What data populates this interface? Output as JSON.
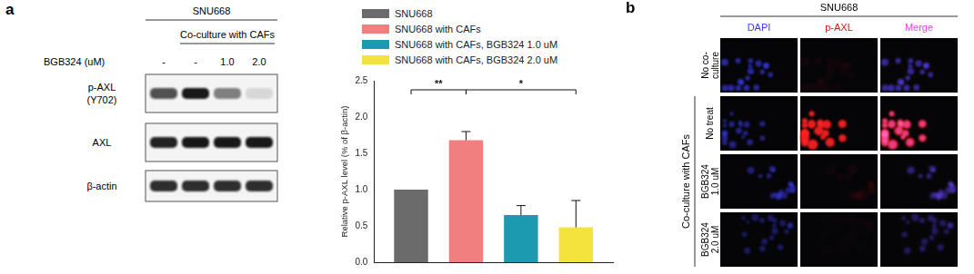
{
  "chart_data": {
    "type": "bar",
    "categories": [
      null
    ],
    "ylabel": "Relative p-AXL level (% of β-actin)",
    "ylim": [
      0,
      2.5
    ],
    "yticks": [
      {
        "value": 0,
        "label": "0.0"
      },
      0.5,
      {
        "value": 1,
        "label": "1.0"
      },
      1.5,
      {
        "value": 2,
        "label": "2.0"
      },
      2.5
    ],
    "grid": false,
    "legend": "top",
    "tick_labels": "y",
    "series": [
      {
        "name": "SNU668",
        "color": "#6b6b6b",
        "values": [
          1.0
        ],
        "errors": [
          null
        ]
      },
      {
        "name": "SNU668 with CAFs",
        "color": "#f27f7f",
        "values": [
          1.68
        ],
        "errors": [
          0.12
        ]
      },
      {
        "name": "SNU668 with CAFs, BGB324 1.0 uM",
        "color": "#1c9bb0",
        "values": [
          0.65
        ],
        "errors": [
          0.13
        ]
      },
      {
        "name": "SNU668 with CAFs, BGB324 2.0 uM",
        "color": "#f3e33c",
        "values": [
          0.48
        ],
        "errors": [
          0.37
        ]
      }
    ],
    "annotations": [
      {
        "text": "**",
        "from": 0,
        "to": 1
      },
      {
        "text": "*",
        "from": 1,
        "to": 3
      }
    ]
  },
  "blot": {
    "panel_label": "a",
    "title": "SNU668",
    "subtitle": "Co-culture with CAFs",
    "treatment_label": "BGB324 (uM)",
    "lanes": [
      "-",
      "-",
      "1.0",
      "2.0"
    ],
    "coculture": [
      false,
      true,
      true,
      true
    ],
    "rows": [
      {
        "label": [
          "p-AXL",
          "(Y702)"
        ],
        "intensity": [
          0.7,
          0.95,
          0.5,
          0.12
        ]
      },
      {
        "label": [
          "AXL"
        ],
        "intensity": [
          0.9,
          0.95,
          0.95,
          0.95
        ]
      },
      {
        "label": [
          "β-actin"
        ],
        "intensity": [
          0.85,
          0.85,
          0.85,
          0.85
        ]
      }
    ]
  },
  "images": {
    "panel_label": "b",
    "title": "SNU668",
    "columns": [
      {
        "text": "DAPI",
        "color": "#3a3aff"
      },
      {
        "text": "p-AXL",
        "color": "#e01010"
      },
      {
        "text": "Merge",
        "color": "#e040e0"
      }
    ],
    "group_label": "Co-culture with CAFs",
    "rows": [
      {
        "label": [
          "No co-",
          "culture"
        ],
        "in_group": false,
        "dapi": 0.6,
        "p_axl": 0.04
      },
      {
        "label": [
          "No treat"
        ],
        "in_group": true,
        "dapi": 0.5,
        "p_axl": 0.9
      },
      {
        "label": [
          "BGB324",
          "1.0 uM"
        ],
        "in_group": true,
        "dapi": 0.45,
        "p_axl": 0.04
      },
      {
        "label": [
          "BGB324",
          "2.0 uM"
        ],
        "in_group": true,
        "dapi": 0.35,
        "p_axl": 0.02
      }
    ]
  }
}
